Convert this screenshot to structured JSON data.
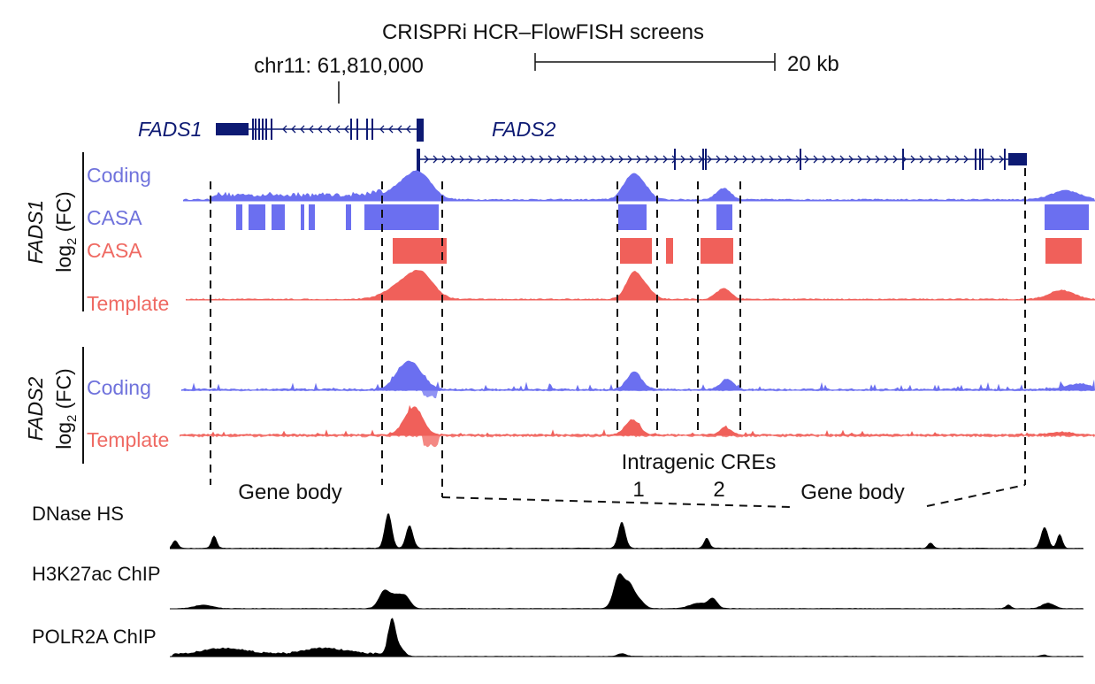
{
  "title": "CRISPRi HCR–FlowFISH screens",
  "coordinate_label": "chr11: 61,810,000",
  "scale_bar_label": "20 kb",
  "genes": [
    "FADS1",
    "FADS2"
  ],
  "group_fads1": {
    "gene": "FADS1",
    "units": "log",
    "sub": "2",
    "rest": " (FC)"
  },
  "group_fads2": {
    "gene": "FADS2",
    "units": "log",
    "sub": "2",
    "rest": " (FC)"
  },
  "fads1_tracks": [
    "Coding",
    "CASA",
    "CASA",
    "Template"
  ],
  "fads2_tracks": [
    "Coding",
    "Template"
  ],
  "regions": {
    "gene_body_left": "Gene body",
    "gene_body_right": "Gene body",
    "intragenic_cres": "Intragenic CREs",
    "cre_1": "1",
    "cre_2": "2"
  },
  "chromatin_tracks": [
    "DNase HS",
    "H3K27ac ChIP",
    "POLR2A ChIP"
  ],
  "colors": {
    "gene": "#0d1a73",
    "coding": "#6b6ff0",
    "template": "#f0605a",
    "chromatin": "#000000",
    "coding_label": "#6f72dc",
    "template_label": "#ef6a63"
  }
}
